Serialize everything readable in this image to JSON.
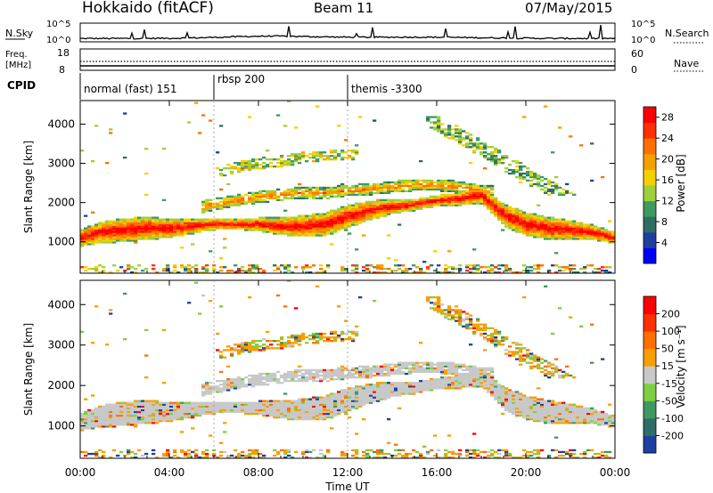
{
  "header": {
    "station": "Hokkaido (fitACF)",
    "beam": "Beam 11",
    "date": "07/May/2015"
  },
  "top_panels": {
    "nsky": {
      "label": "N.Sky",
      "ticks": [
        "10^5",
        "10^0"
      ]
    },
    "nsearch": {
      "label": "N.Search",
      "ticks": [
        "10^5",
        "10^0"
      ]
    },
    "freq": {
      "label": "Freq.",
      "unit": "[MHz]",
      "ticks": [
        "18",
        "8"
      ]
    },
    "nave": {
      "label": "Nave",
      "ticks": [
        "60",
        "0"
      ]
    },
    "cpid": {
      "label": "CPID",
      "segments": [
        {
          "name": "normal (fast) 151",
          "start_h": 0,
          "end_h": 6
        },
        {
          "name": "rbsp 200",
          "start_h": 6,
          "end_h": 12
        },
        {
          "name": "themis -3300",
          "start_h": 12,
          "end_h": 24
        }
      ]
    }
  },
  "chart_data": [
    {
      "type": "heatmap",
      "title": "Power",
      "xlabel": "Time UT",
      "ylabel": "Slant Range [km]",
      "xlim": [
        0,
        24
      ],
      "ylim": [
        200,
        4600
      ],
      "x_ticks": [
        "00:00",
        "04:00",
        "08:00",
        "12:00",
        "16:00",
        "20:00",
        "00:00"
      ],
      "y_ticks": [
        1000,
        2000,
        3000,
        4000
      ],
      "colorbar": {
        "label": "Power [dB]",
        "ticks": [
          "28",
          "24",
          "20",
          "16",
          "12",
          "8",
          "4"
        ],
        "range": [
          0,
          30
        ],
        "colors": [
          "#0000ff",
          "#1f3fa0",
          "#2e6e66",
          "#3e9a60",
          "#9ed03a",
          "#f5d000",
          "#f5a000",
          "#ff7000",
          "#ff3000",
          "#ff0000"
        ]
      },
      "main_band": {
        "x": [
          0,
          1,
          2,
          3,
          4,
          5,
          6,
          7,
          8,
          9,
          10,
          11,
          12,
          13,
          14,
          15,
          16,
          17,
          18,
          19,
          20,
          21,
          22,
          23,
          24
        ],
        "y": [
          1100,
          1250,
          1300,
          1350,
          1350,
          1400,
          1450,
          1450,
          1450,
          1400,
          1400,
          1450,
          1650,
          1800,
          1900,
          1950,
          2050,
          2100,
          2200,
          1700,
          1450,
          1350,
          1300,
          1250,
          1100
        ]
      },
      "upper_band": {
        "x": [
          5.5,
          7,
          8,
          9,
          10,
          11,
          12,
          13,
          14,
          15,
          16,
          17,
          18
        ],
        "y": [
          1900,
          2050,
          2150,
          2200,
          2250,
          2250,
          2300,
          2350,
          2400,
          2450,
          2450,
          2400,
          2300
        ]
      },
      "high_echo": {
        "x": [
          6,
          7,
          8,
          9,
          10,
          11,
          12
        ],
        "y": [
          2750,
          2900,
          3000,
          3050,
          3150,
          3200,
          3200
        ]
      }
    },
    {
      "type": "heatmap",
      "title": "Velocity",
      "xlabel": "Time UT",
      "ylabel": "Slant Range [km]",
      "xlim": [
        0,
        24
      ],
      "ylim": [
        200,
        4600
      ],
      "x_ticks": [
        "00:00",
        "04:00",
        "08:00",
        "12:00",
        "16:00",
        "20:00",
        "00:00"
      ],
      "y_ticks": [
        1000,
        2000,
        3000,
        4000
      ],
      "colorbar": {
        "label": "Velocity [m s⁻¹]",
        "ticks": [
          "200",
          "100",
          "50",
          "15",
          "-15",
          "-50",
          "-100",
          "-200"
        ],
        "colors": [
          "#1f3fa0",
          "#2e6e66",
          "#3e9a60",
          "#7ed040",
          "#c8c8c8",
          "#f5a000",
          "#ff7000",
          "#ff3000",
          "#ff0000"
        ]
      }
    }
  ],
  "colors": {
    "ground_scatter": "#c8c8c8",
    "frame": "#000000",
    "background": "#ffffff"
  }
}
